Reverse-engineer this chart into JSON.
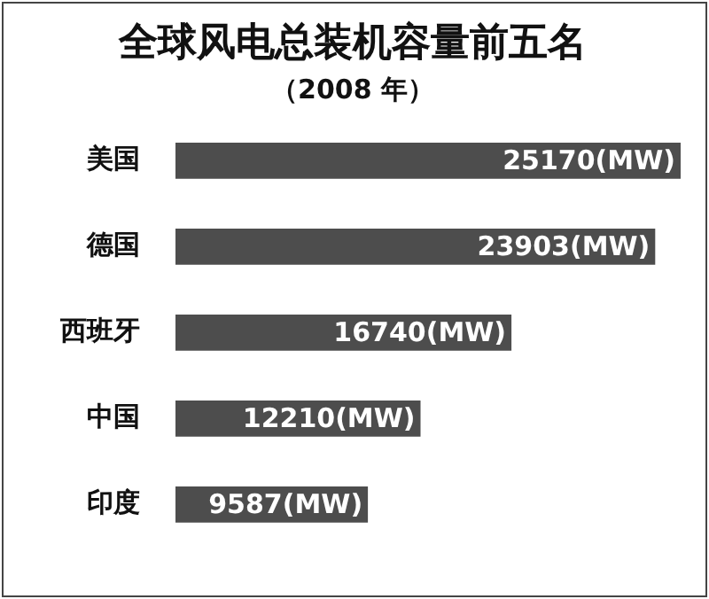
{
  "chart_data": {
    "type": "bar",
    "orientation": "horizontal",
    "title": "全球风电总装机容量前五名",
    "subtitle": "（2008 年）",
    "categories": [
      "美国",
      "德国",
      "西班牙",
      "中国",
      "印度"
    ],
    "values": [
      25170,
      23903,
      16740,
      12210,
      9587
    ],
    "value_labels": [
      "25170(MW)",
      "23903(MW)",
      "16740(MW)",
      "12210(MW)",
      "9587(MW)"
    ],
    "color": "#4d4d4d",
    "grid": false,
    "legend": false,
    "tick_labels": "y"
  }
}
